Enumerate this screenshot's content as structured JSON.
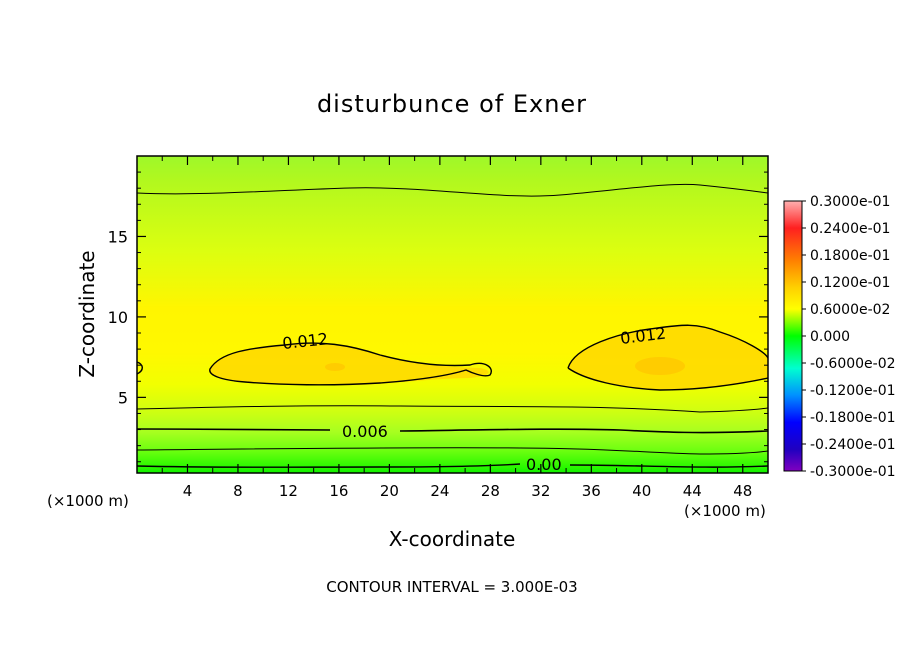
{
  "chart_data": {
    "type": "heatmap",
    "title": "disturbunce of Exner",
    "xlabel": "X-coordinate",
    "ylabel": "Z-coordinate",
    "x_unit": "(×1000 m)",
    "x_unit_right": "(×1000 m)",
    "xlim": [
      0,
      50
    ],
    "ylim": [
      0.3,
      20
    ],
    "x_ticks": [
      4,
      8,
      12,
      16,
      20,
      24,
      28,
      32,
      36,
      40,
      44,
      48
    ],
    "y_ticks": [
      5,
      10,
      15
    ],
    "footer": "CONTOUR INTERVAL = 3.000E-03",
    "contour_interval": 0.003,
    "contour_labels": [
      {
        "text": "0.012",
        "x": 13.5,
        "z": 8.1
      },
      {
        "text": "0.012",
        "x": 40.5,
        "z": 8.5
      },
      {
        "text": "0.006",
        "x": 18.5,
        "z": 2.6
      },
      {
        "text": "0.00",
        "x": 32,
        "z": 0.5
      }
    ],
    "colorbar": {
      "range": [
        -0.03,
        0.03
      ],
      "labels": [
        "0.3000e-01",
        "0.2400e-01",
        "0.1800e-01",
        "0.1200e-01",
        "0.6000e-02",
        "0.000",
        "-0.6000e-02",
        "-0.1200e-01",
        "-0.1800e-01",
        "-0.2400e-01",
        "-0.3000e-01"
      ],
      "colors": [
        "#ff9999",
        "#ff3030",
        "#ff8a00",
        "#ffd200",
        "#ffff00",
        "#00ff00",
        "#00ffc8",
        "#00a0ff",
        "#0000ff",
        "#3000d0",
        "#8000c0"
      ]
    }
  }
}
